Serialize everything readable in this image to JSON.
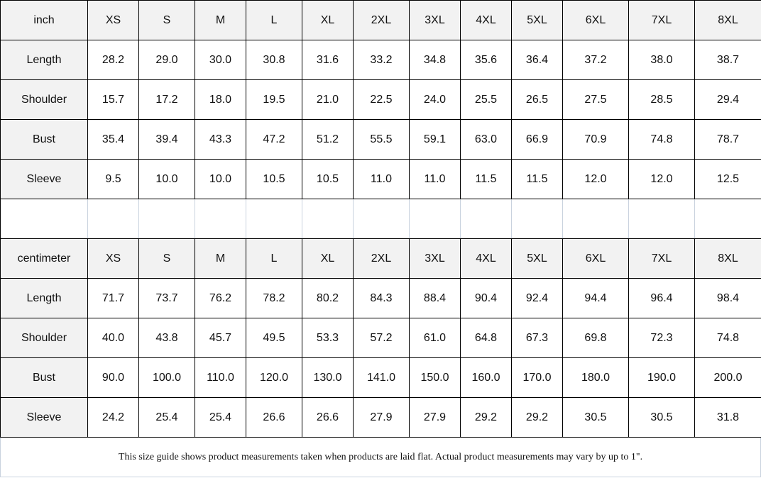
{
  "inch_table": {
    "unit": "inch",
    "sizes": [
      "XS",
      "S",
      "M",
      "L",
      "XL",
      "2XL",
      "3XL",
      "4XL",
      "5XL",
      "6XL",
      "7XL",
      "8XL"
    ],
    "rows": [
      {
        "label": "Length",
        "values": [
          "28.2",
          "29.0",
          "30.0",
          "30.8",
          "31.6",
          "33.2",
          "34.8",
          "35.6",
          "36.4",
          "37.2",
          "38.0",
          "38.7"
        ]
      },
      {
        "label": "Shoulder",
        "values": [
          "15.7",
          "17.2",
          "18.0",
          "19.5",
          "21.0",
          "22.5",
          "24.0",
          "25.5",
          "26.5",
          "27.5",
          "28.5",
          "29.4"
        ]
      },
      {
        "label": "Bust",
        "values": [
          "35.4",
          "39.4",
          "43.3",
          "47.2",
          "51.2",
          "55.5",
          "59.1",
          "63.0",
          "66.9",
          "70.9",
          "74.8",
          "78.7"
        ]
      },
      {
        "label": "Sleeve",
        "values": [
          "9.5",
          "10.0",
          "10.0",
          "10.5",
          "10.5",
          "11.0",
          "11.0",
          "11.5",
          "11.5",
          "12.0",
          "12.0",
          "12.5"
        ]
      }
    ]
  },
  "cm_table": {
    "unit": "centimeter",
    "sizes": [
      "XS",
      "S",
      "M",
      "L",
      "XL",
      "2XL",
      "3XL",
      "4XL",
      "5XL",
      "6XL",
      "7XL",
      "8XL"
    ],
    "rows": [
      {
        "label": "Length",
        "values": [
          "71.7",
          "73.7",
          "76.2",
          "78.2",
          "80.2",
          "84.3",
          "88.4",
          "90.4",
          "92.4",
          "94.4",
          "96.4",
          "98.4"
        ]
      },
      {
        "label": "Shoulder",
        "values": [
          "40.0",
          "43.8",
          "45.7",
          "49.5",
          "53.3",
          "57.2",
          "61.0",
          "64.8",
          "67.3",
          "69.8",
          "72.3",
          "74.8"
        ]
      },
      {
        "label": "Bust",
        "values": [
          "90.0",
          "100.0",
          "110.0",
          "120.0",
          "130.0",
          "141.0",
          "150.0",
          "160.0",
          "170.0",
          "180.0",
          "190.0",
          "200.0"
        ]
      },
      {
        "label": "Sleeve",
        "values": [
          "24.2",
          "25.4",
          "25.4",
          "26.6",
          "26.6",
          "27.9",
          "27.9",
          "29.2",
          "29.2",
          "30.5",
          "30.5",
          "31.8"
        ]
      }
    ]
  },
  "footer_note": "This size guide shows product measurements taken when products are laid flat. Actual product measurements may vary by up to 1\"."
}
